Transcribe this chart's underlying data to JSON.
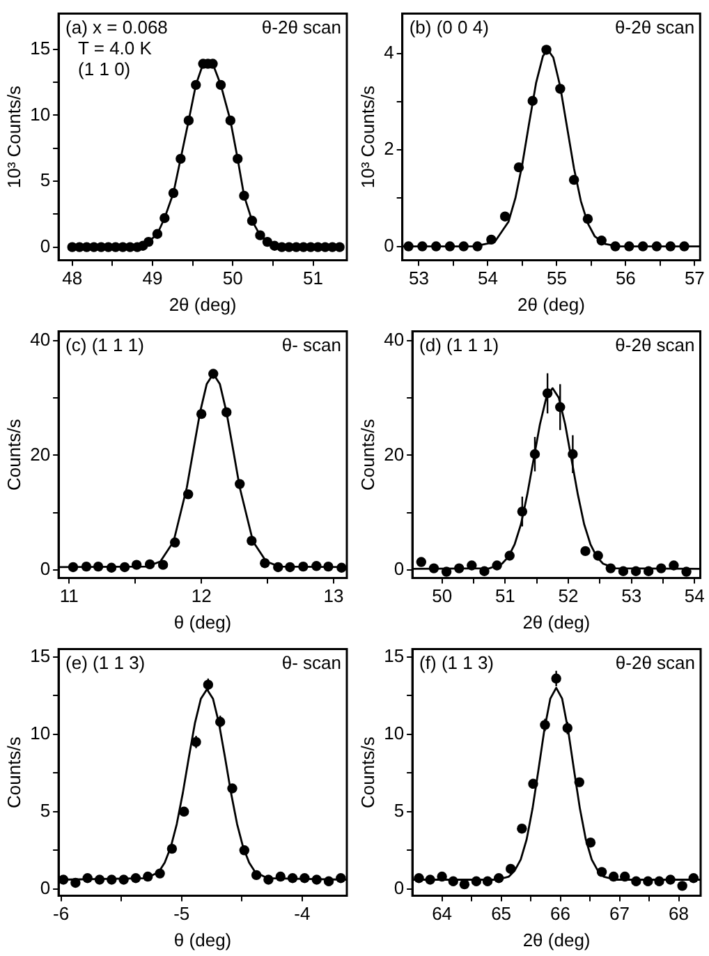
{
  "chart_data": [
    {
      "type": "line",
      "xlabel": "2θ (deg)",
      "ylabel": "10³ Counts/s",
      "annotations": [
        "(a) x = 0.068",
        "T = 4.0 K",
        "(1 1 0)",
        "θ-2θ scan"
      ],
      "xlim": [
        47.83,
        51.42
      ],
      "ylim": [
        -1,
        17.7
      ],
      "xticks": [
        48,
        {
          "value": 48.5,
          "label": null
        },
        49,
        {
          "value": 49.5,
          "label": null
        },
        50,
        {
          "value": 50.5,
          "label": null
        },
        51
      ],
      "yticks": [
        0,
        {
          "value": 2.5,
          "label": null
        },
        5,
        {
          "value": 7.5,
          "label": null
        },
        10,
        {
          "value": 12.5,
          "label": null
        },
        15
      ],
      "grid": false,
      "legend": false,
      "series": [
        {
          "marker": "circle",
          "color": "#000000",
          "x": [
            48.0,
            48.09,
            48.18,
            48.27,
            48.36,
            48.45,
            48.54,
            48.63,
            48.72,
            48.81,
            48.88,
            48.95,
            49.06,
            49.15,
            49.26,
            49.35,
            49.45,
            49.54,
            49.63,
            49.69,
            49.75,
            49.85,
            49.97,
            50.06,
            50.14,
            50.24,
            50.34,
            50.43,
            50.52,
            50.61,
            50.7,
            50.79,
            50.88,
            50.97,
            51.06,
            51.15,
            51.24,
            51.33
          ],
          "values": [
            0,
            0,
            0,
            0,
            0,
            0,
            0,
            0,
            0,
            0,
            0.1,
            0.4,
            1.0,
            2.2,
            4.1,
            6.7,
            9.6,
            12.3,
            13.9,
            13.9,
            13.9,
            12.3,
            9.6,
            6.7,
            3.9,
            2.0,
            0.9,
            0.4,
            0.1,
            0,
            0,
            0,
            0,
            0,
            0,
            0,
            0,
            0
          ]
        }
      ]
    },
    {
      "type": "scatter",
      "xlabel": "2θ (deg)",
      "ylabel": "10³ Counts/s",
      "annotations": [
        "(b) (0 0 4)",
        "θ-2θ scan"
      ],
      "xlim": [
        52.76,
        57.08
      ],
      "ylim": [
        -0.29,
        4.83
      ],
      "xticks": [
        53,
        {
          "value": 53.5,
          "label": null
        },
        54,
        {
          "value": 54.5,
          "label": null
        },
        55,
        {
          "value": 55.5,
          "label": null
        },
        56,
        {
          "value": 56.5,
          "label": null
        },
        57
      ],
      "yticks": [
        0,
        {
          "value": 1,
          "label": null
        },
        2,
        {
          "value": 3,
          "label": null
        },
        4
      ],
      "grid": false,
      "legend": false,
      "series": [
        {
          "marker": "circle",
          "color": "#000000",
          "x": [
            52.85,
            53.05,
            53.25,
            53.45,
            53.65,
            53.85,
            54.05,
            54.25,
            54.45,
            54.65,
            54.85,
            55.05,
            55.25,
            55.45,
            55.65,
            55.85,
            56.05,
            56.25,
            56.45,
            56.65,
            56.85
          ],
          "values": [
            0,
            0,
            0,
            0,
            0,
            0,
            0.14,
            0.62,
            1.64,
            3.02,
            4.08,
            3.27,
            1.38,
            0.57,
            0.12,
            0,
            0,
            0,
            0,
            0,
            0
          ]
        },
        {
          "type": "line",
          "marker": "none",
          "color": "#000000",
          "x": [
            52.76,
            53.8,
            54.1,
            54.3,
            54.4,
            54.5,
            54.6,
            54.7,
            54.8,
            54.87,
            54.95,
            55.05,
            55.15,
            55.25,
            55.35,
            55.45,
            55.55,
            55.7,
            55.9,
            57.08
          ],
          "values": [
            0,
            0,
            0.09,
            0.51,
            1.0,
            1.7,
            2.56,
            3.39,
            3.95,
            4.08,
            3.92,
            3.32,
            2.47,
            1.62,
            0.94,
            0.48,
            0.21,
            0.05,
            0,
            0
          ]
        }
      ]
    },
    {
      "type": "scatter",
      "xlabel": "θ (deg)",
      "ylabel": "Counts/s",
      "annotations": [
        "(c) (1 1 1)",
        "θ- scan"
      ],
      "xlim": [
        10.92,
        13.1
      ],
      "ylim": [
        -1.4,
        41.6
      ],
      "xticks": [
        11,
        {
          "value": 11.5,
          "label": null
        },
        12,
        {
          "value": 12.5,
          "label": null
        },
        13
      ],
      "yticks": [
        0,
        {
          "value": 10,
          "label": null
        },
        20,
        {
          "value": 30,
          "label": null
        },
        40
      ],
      "grid": false,
      "legend": false,
      "series": [
        {
          "marker": "circle",
          "color": "#000000",
          "x": [
            11.03,
            11.13,
            11.22,
            11.32,
            11.42,
            11.51,
            11.61,
            11.71,
            11.8,
            11.9,
            12.0,
            12.09,
            12.19,
            12.29,
            12.38,
            12.48,
            12.58,
            12.67,
            12.77,
            12.87,
            12.96,
            13.06
          ],
          "values": [
            0.5,
            0.6,
            0.6,
            0.4,
            0.5,
            0.9,
            1.0,
            0.9,
            4.8,
            13.2,
            27.2,
            34.2,
            27.5,
            15,
            5.1,
            1.2,
            0.5,
            0.5,
            0.6,
            0.7,
            0.6,
            0.4
          ]
        },
        {
          "type": "line",
          "marker": "none",
          "color": "#000000",
          "x": [
            10.92,
            11.59,
            11.69,
            11.79,
            11.89,
            11.94,
            11.99,
            12.04,
            12.09,
            12.14,
            12.19,
            12.24,
            12.29,
            12.39,
            12.49,
            12.59,
            13.1
          ],
          "values": [
            0.5,
            0.6,
            1.5,
            5,
            14.4,
            21,
            27.5,
            32.4,
            34.2,
            32.4,
            27.5,
            21,
            14.4,
            5,
            1.5,
            0.6,
            0.5
          ]
        }
      ]
    },
    {
      "type": "scatter",
      "xlabel": "2θ (deg)",
      "ylabel": "Counts/s",
      "annotations": [
        "(d) (1 1 1)",
        "θ-2θ scan"
      ],
      "xlim": [
        49.53,
        54.09
      ],
      "ylim": [
        -1.4,
        41.6
      ],
      "xticks": [
        50,
        {
          "value": 50.5,
          "label": null
        },
        51,
        {
          "value": 51.5,
          "label": null
        },
        52,
        {
          "value": 52.5,
          "label": null
        },
        53,
        {
          "value": 53.5,
          "label": null
        },
        54
      ],
      "yticks": [
        0,
        {
          "value": 10,
          "label": null
        },
        20,
        {
          "value": 30,
          "label": null
        },
        40
      ],
      "grid": false,
      "legend": false,
      "series": [
        {
          "marker": "circle",
          "color": "#000000",
          "x": [
            49.67,
            49.87,
            50.07,
            50.27,
            50.47,
            50.67,
            50.87,
            51.07,
            51.27,
            51.47,
            51.67,
            51.87,
            52.07,
            52.27,
            52.47,
            52.67,
            52.87,
            53.07,
            53.27,
            53.47,
            53.67,
            53.87
          ],
          "values": [
            1.4,
            0.3,
            -0.3,
            0.3,
            0.8,
            -0.2,
            0.8,
            2.5,
            10.2,
            20.2,
            30.8,
            28.4,
            20.2,
            3.3,
            2.5,
            0.3,
            -0.2,
            -0.2,
            -0.2,
            0.3,
            0.8,
            -0.3
          ],
          "errors": [
            null,
            null,
            null,
            null,
            null,
            null,
            null,
            null,
            2.6,
            3,
            3.5,
            4,
            3.3,
            null,
            null,
            null,
            null,
            null,
            null,
            null,
            null,
            null
          ]
        },
        {
          "type": "line",
          "marker": "none",
          "color": "#000000",
          "x": [
            49.53,
            50.75,
            50.95,
            51.05,
            51.15,
            51.25,
            51.35,
            51.45,
            51.55,
            51.65,
            51.75,
            51.85,
            51.95,
            52.05,
            52.15,
            52.25,
            52.35,
            52.45,
            52.55,
            52.75,
            54.09
          ],
          "values": [
            0.2,
            0.3,
            1.1,
            2.3,
            4.5,
            8,
            13.2,
            19.3,
            25.4,
            30,
            31.7,
            30,
            25.4,
            19.3,
            13.2,
            8,
            4.5,
            2.3,
            1.1,
            0.3,
            0.2
          ]
        }
      ]
    },
    {
      "type": "scatter",
      "xlabel": "θ (deg)",
      "ylabel": "Counts/s",
      "annotations": [
        "(e) (1 1 3)",
        "θ- scan"
      ],
      "xlim": [
        -6.02,
        -3.63
      ],
      "ylim": [
        -0.44,
        15.5
      ],
      "xticks": [
        -6,
        {
          "value": -5.5,
          "label": null
        },
        -5,
        {
          "value": -4.5,
          "label": null
        },
        -4
      ],
      "yticks": [
        0,
        {
          "value": 2.5,
          "label": null
        },
        5,
        {
          "value": 7.5,
          "label": null
        },
        10,
        {
          "value": 12.5,
          "label": null
        },
        15
      ],
      "grid": false,
      "legend": false,
      "series": [
        {
          "marker": "circle",
          "color": "#000000",
          "x": [
            -5.98,
            -5.88,
            -5.78,
            -5.68,
            -5.58,
            -5.48,
            -5.38,
            -5.28,
            -5.18,
            -5.08,
            -4.98,
            -4.88,
            -4.78,
            -4.68,
            -4.58,
            -4.48,
            -4.38,
            -4.28,
            -4.18,
            -4.08,
            -3.98,
            -3.88,
            -3.78,
            -3.68
          ],
          "values": [
            0.6,
            0.4,
            0.7,
            0.6,
            0.6,
            0.6,
            0.7,
            0.8,
            1.0,
            2.6,
            5.0,
            9.5,
            13.2,
            10.8,
            6.5,
            2.5,
            0.9,
            0.6,
            0.8,
            0.7,
            0.7,
            0.6,
            0.5,
            0.7
          ],
          "errors": [
            null,
            null,
            null,
            null,
            null,
            null,
            null,
            null,
            null,
            null,
            null,
            0.4,
            0.4,
            0.4,
            null,
            null,
            null,
            null,
            null,
            null,
            null,
            null,
            null,
            null
          ]
        },
        {
          "type": "line",
          "marker": "none",
          "color": "#000000",
          "x": [
            -6.02,
            -5.29,
            -5.19,
            -5.14,
            -5.09,
            -5.04,
            -4.99,
            -4.94,
            -4.89,
            -4.84,
            -4.79,
            -4.74,
            -4.69,
            -4.64,
            -4.59,
            -4.54,
            -4.49,
            -4.44,
            -4.39,
            -4.29,
            -3.63
          ],
          "values": [
            0.6,
            0.7,
            1.1,
            1.7,
            2.7,
            4.2,
            6.2,
            8.5,
            10.7,
            12.3,
            12.9,
            12.3,
            10.7,
            8.5,
            6.2,
            4.2,
            2.7,
            1.7,
            1.1,
            0.7,
            0.6
          ]
        }
      ]
    },
    {
      "type": "scatter",
      "xlabel": "2θ (deg)",
      "ylabel": "Counts/s",
      "annotations": [
        "(f) (1 1 3)",
        "θ-2θ scan"
      ],
      "xlim": [
        63.5,
        68.37
      ],
      "ylim": [
        -0.44,
        15.5
      ],
      "xticks": [
        64,
        {
          "value": 64.5,
          "label": null
        },
        65,
        {
          "value": 65.5,
          "label": null
        },
        66,
        {
          "value": 66.5,
          "label": null
        },
        67,
        {
          "value": 67.5,
          "label": null
        },
        68
      ],
      "yticks": [
        0,
        {
          "value": 2.5,
          "label": null
        },
        5,
        {
          "value": 7.5,
          "label": null
        },
        10,
        {
          "value": 12.5,
          "label": null
        },
        15
      ],
      "grid": false,
      "legend": false,
      "series": [
        {
          "marker": "circle",
          "color": "#000000",
          "x": [
            63.61,
            63.8,
            64.0,
            64.19,
            64.38,
            64.58,
            64.77,
            64.96,
            65.16,
            65.35,
            65.54,
            65.74,
            65.93,
            66.12,
            66.32,
            66.51,
            66.7,
            66.9,
            67.09,
            67.28,
            67.48,
            67.67,
            67.86,
            68.06,
            68.25
          ],
          "values": [
            0.7,
            0.6,
            0.8,
            0.5,
            0.3,
            0.5,
            0.5,
            0.7,
            1.3,
            3.9,
            6.8,
            10.6,
            13.6,
            10.4,
            6.9,
            3.0,
            1.1,
            0.8,
            0.8,
            0.5,
            0.5,
            0.5,
            0.6,
            0.2,
            0.7
          ],
          "errors": [
            null,
            null,
            null,
            null,
            null,
            null,
            null,
            null,
            null,
            null,
            null,
            0.4,
            0.5,
            0.4,
            null,
            null,
            null,
            null,
            null,
            null,
            null,
            null,
            null,
            null,
            null
          ]
        },
        {
          "type": "line",
          "marker": "none",
          "color": "#000000",
          "x": [
            63.5,
            64.93,
            65.13,
            65.23,
            65.33,
            65.43,
            65.53,
            65.63,
            65.73,
            65.83,
            65.93,
            66.03,
            66.13,
            66.23,
            66.33,
            66.43,
            66.53,
            66.63,
            66.73,
            66.93,
            68.37
          ],
          "values": [
            0.6,
            0.6,
            0.8,
            1.2,
            1.9,
            3.2,
            5.2,
            7.7,
            10.3,
            12.3,
            13,
            12.3,
            10.3,
            7.7,
            5.2,
            3.2,
            1.9,
            1.2,
            0.8,
            0.6,
            0.6
          ]
        }
      ]
    }
  ]
}
